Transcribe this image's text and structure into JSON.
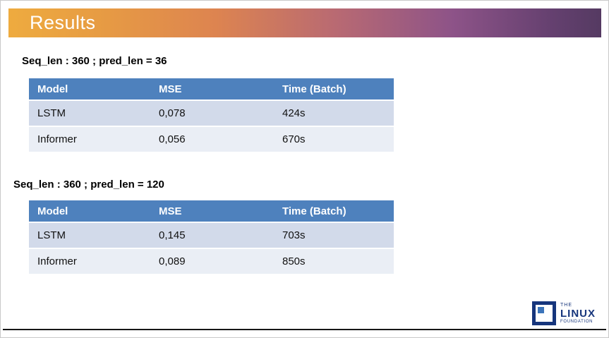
{
  "slide": {
    "title": "Results"
  },
  "sections": [
    {
      "label": "Seq_len : 360 ; pred_len = 36",
      "table": {
        "headers": [
          "Model",
          "MSE",
          "Time (Batch)"
        ],
        "rows": [
          [
            "LSTM",
            "0,078",
            "424s"
          ],
          [
            "Informer",
            "0,056",
            "670s"
          ]
        ]
      }
    },
    {
      "label": "Seq_len : 360 ; pred_len = 120",
      "table": {
        "headers": [
          "Model",
          "MSE",
          "Time (Batch)"
        ],
        "rows": [
          [
            "LSTM",
            "0,145",
            "703s"
          ],
          [
            "Informer",
            "0,089",
            "850s"
          ]
        ]
      }
    }
  ],
  "footer": {
    "logo": {
      "line1": "THE",
      "line2": "LINUX",
      "line3": "FOUNDATION"
    }
  },
  "colors": {
    "title_bar_gradient_left": "#EEAB3F",
    "title_bar_gradient_right": "#553A62",
    "table_header_bg": "#4E81BD",
    "table_row_odd_bg": "#D2DAEA",
    "table_row_even_bg": "#EAEEF5",
    "logo_navy": "#16357C"
  }
}
